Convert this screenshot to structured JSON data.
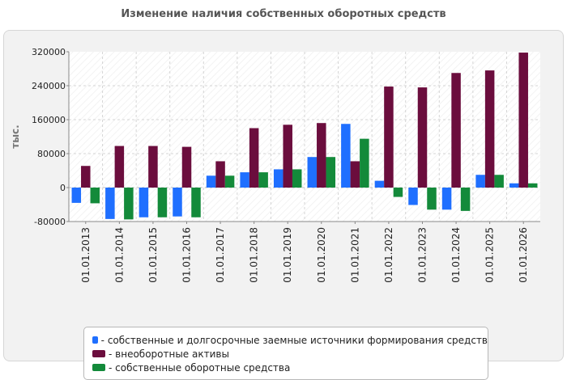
{
  "title": "Изменение наличия собственных оборотных средств",
  "chart_data": {
    "type": "bar",
    "title": "Изменение наличия собственных оборотных средств",
    "ylabel": "тыс.",
    "xlabel": "",
    "ylim": [
      -80000,
      320000
    ],
    "yticks": [
      -80000,
      0,
      80000,
      160000,
      240000,
      320000
    ],
    "grid": true,
    "legend_position": "bottom",
    "categories": [
      "01.01.2013",
      "01.01.2014",
      "01.01.2015",
      "01.01.2016",
      "01.01.2017",
      "01.01.2018",
      "01.01.2019",
      "01.01.2020",
      "01.01.2021",
      "01.01.2022",
      "01.01.2023",
      "01.01.2024",
      "01.01.2025",
      "01.01.2026"
    ],
    "series": [
      {
        "name": "- собственные и долгосрочные заемные источники формирования средств",
        "color": "#1f6fff",
        "values": [
          -36000,
          -74000,
          -70000,
          -68000,
          28000,
          36000,
          43000,
          72000,
          150000,
          16000,
          -41000,
          -52000,
          30000,
          10000
        ]
      },
      {
        "name": "- внеоборотные активы",
        "color": "#6b0d3d",
        "values": [
          51000,
          98000,
          98000,
          96000,
          62000,
          140000,
          148000,
          152000,
          62000,
          238000,
          236000,
          270000,
          276000,
          318000
        ]
      },
      {
        "name": "- собственные оборотные средства",
        "color": "#138a3a",
        "values": [
          -37000,
          -75000,
          -70000,
          -70000,
          28000,
          36000,
          43000,
          72000,
          115000,
          -22000,
          -52000,
          -55000,
          30000,
          10000
        ]
      }
    ]
  }
}
